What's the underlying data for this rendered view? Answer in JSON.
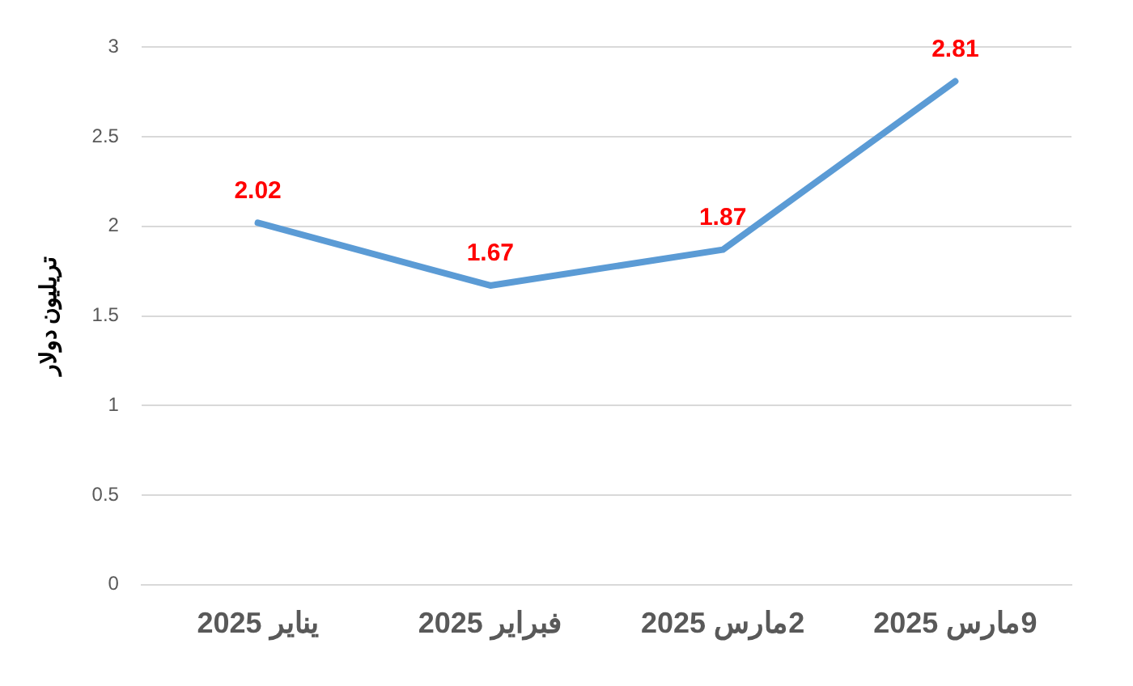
{
  "chart_data": {
    "type": "line",
    "ylabel": "تريليون دولار",
    "categories": [
      "يناير 2025",
      "فبراير 2025",
      "2مارس 2025",
      "9مارس 2025"
    ],
    "series": [
      {
        "color": "#5b9bd5",
        "values": [
          2.02,
          1.67,
          1.87,
          2.81
        ]
      }
    ],
    "ylim": [
      0,
      3
    ],
    "yticks": [
      0,
      0.5,
      1,
      1.5,
      2,
      2.5,
      3
    ],
    "grid": "y",
    "legend": false,
    "marker": "none",
    "data_labels": true
  }
}
